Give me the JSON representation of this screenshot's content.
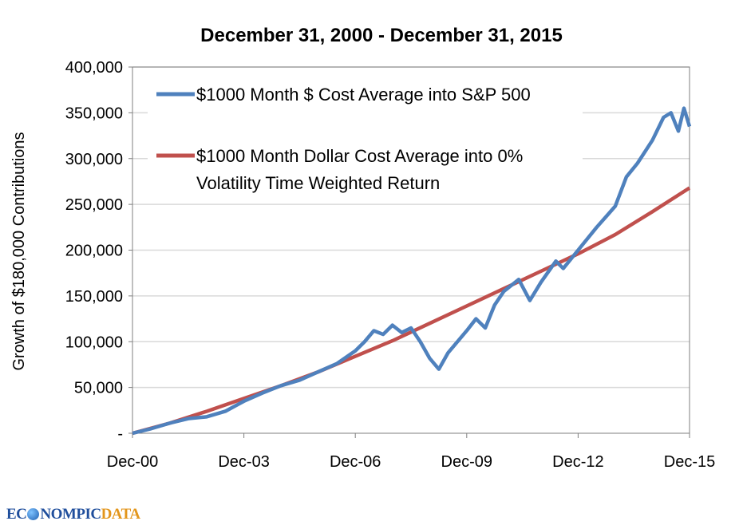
{
  "chart_data": {
    "type": "line",
    "title": "December 31, 2000 - December 31, 2015",
    "ylabel": "Growth of $180,000 Contributions",
    "xlabel": "",
    "ylim": [
      0,
      400000
    ],
    "xlim": [
      2000.917,
      2015.917
    ],
    "grid": true,
    "legend": "top-left",
    "yticks": [
      0,
      50000,
      100000,
      150000,
      200000,
      250000,
      300000,
      350000,
      400000
    ],
    "ytick_labels": [
      "-",
      "50,000",
      "100,000",
      "150,000",
      "200,000",
      "250,000",
      "300,000",
      "350,000",
      "400,000"
    ],
    "xtick_labels": [
      "Dec-00",
      "Dec-03",
      "Dec-06",
      "Dec-09",
      "Dec-12",
      "Dec-15"
    ],
    "xticks_years_since_dec00": [
      0,
      3,
      6,
      9,
      12,
      15
    ],
    "series": [
      {
        "name": "$1000 Month $ Cost Average into S&P 500",
        "color": "#4F81BD",
        "x_years_since_dec00": [
          0,
          0.5,
          1,
          1.5,
          2,
          2.5,
          3,
          3.5,
          4,
          4.5,
          5,
          5.5,
          6,
          6.25,
          6.5,
          6.75,
          7,
          7.25,
          7.5,
          7.75,
          8,
          8.25,
          8.5,
          9,
          9.25,
          9.5,
          9.75,
          10,
          10.4,
          10.7,
          11,
          11.4,
          11.6,
          12,
          12.5,
          13,
          13.3,
          13.6,
          14,
          14.3,
          14.5,
          14.7,
          14.85,
          15
        ],
        "values": [
          0,
          5000,
          11000,
          16000,
          18000,
          24000,
          35000,
          44000,
          52000,
          58000,
          67000,
          76000,
          90000,
          100000,
          112000,
          108000,
          118000,
          110000,
          115000,
          100000,
          82000,
          70000,
          88000,
          112000,
          125000,
          115000,
          140000,
          155000,
          168000,
          145000,
          165000,
          188000,
          180000,
          200000,
          225000,
          248000,
          280000,
          295000,
          320000,
          345000,
          350000,
          330000,
          355000,
          335000
        ]
      },
      {
        "name": "$1000 Month Dollar Cost Average into 0% Volatility Time Weighted Return",
        "color": "#C0504D",
        "x_years_since_dec00": [
          0,
          1,
          2,
          3,
          4,
          5,
          6,
          7,
          8,
          9,
          10,
          11,
          12,
          13,
          14,
          15
        ],
        "values": [
          0,
          11000,
          24000,
          38000,
          52000,
          67000,
          84000,
          101000,
          120000,
          139000,
          158000,
          177000,
          196000,
          217000,
          242000,
          268000
        ]
      }
    ]
  },
  "legend": {
    "line1": "$1000 Month $ Cost Average into S&P 500",
    "line2a": "$1000 Month Dollar Cost Average into 0%",
    "line2b": "Volatility Time Weighted Return"
  },
  "logo": {
    "part1": "EC",
    "part2": "NOMPIC",
    "part3": "DATA"
  }
}
